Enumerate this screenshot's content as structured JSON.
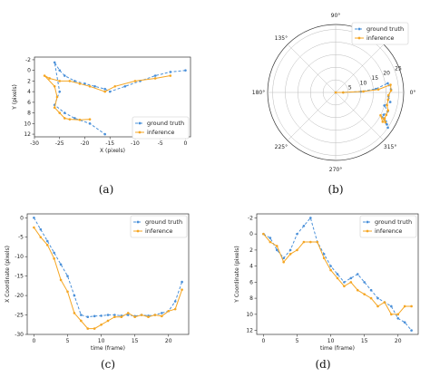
{
  "colors": {
    "ground_truth": "#4a90d9",
    "inference": "#f5a623"
  },
  "panel_labels": [
    "(a)",
    "(b)",
    "(c)",
    "(d)"
  ],
  "chart_data": [
    {
      "type": "line",
      "panel": "(a)",
      "xlabel": "X (pixels)",
      "ylabel": "Y (pixels)",
      "xlim": [
        -30,
        1
      ],
      "ylim": [
        12.5,
        -2.5
      ],
      "xticks": [
        -30,
        -25,
        -20,
        -15,
        -10,
        -5,
        0
      ],
      "yticks": [
        -2,
        0,
        2,
        4,
        6,
        8,
        10,
        12
      ],
      "legend": "bottom-right",
      "series": [
        {
          "name": "ground truth",
          "x": [
            0,
            -3,
            -6,
            -9,
            -12,
            -15,
            -16,
            -18,
            -20,
            -22,
            -24,
            -25,
            -26,
            -25,
            -26,
            -24,
            -22,
            -19,
            -16
          ],
          "y": [
            0,
            0.3,
            1,
            2,
            3,
            4,
            3.5,
            3,
            2.5,
            2,
            1,
            0,
            -1.5,
            4,
            6.5,
            8,
            9,
            10,
            12
          ]
        },
        {
          "name": "inference",
          "x": [
            -3,
            -6,
            -10,
            -14,
            -16,
            -19,
            -21,
            -23,
            -25,
            -27,
            -28,
            -26,
            -25.5,
            -26,
            -25,
            -24,
            -23,
            -21,
            -19
          ],
          "y": [
            1,
            1.5,
            2,
            3,
            4,
            3,
            2.5,
            2,
            2,
            1.5,
            1,
            3,
            5,
            7,
            8,
            9,
            9.2,
            9.3,
            9.2
          ]
        }
      ]
    },
    {
      "type": "line",
      "panel": "(b)",
      "polar": true,
      "angle_ticks": [
        "0°",
        "45°",
        "90°",
        "135°",
        "180°",
        "225°",
        "270°",
        "315°"
      ],
      "radial_ticks": [
        5,
        10,
        15,
        20,
        25
      ],
      "rmax": 27,
      "legend": "top-right",
      "series": [
        {
          "name": "ground truth",
          "theta_deg": [
            180,
            0,
            2,
            5,
            10,
            3,
            356,
            350,
            345,
            340,
            335,
            330,
            328,
            332,
            326
          ],
          "r": [
            0,
            3,
            10,
            16,
            21,
            22,
            21,
            22,
            20,
            22,
            21,
            23,
            24,
            21,
            25
          ]
        },
        {
          "name": "inference",
          "theta_deg": [
            180,
            0,
            2,
            4,
            8,
            2,
            357,
            352,
            346,
            341,
            336,
            332,
            329,
            333,
            328
          ],
          "r": [
            0,
            3,
            11,
            17,
            22,
            22,
            21,
            21,
            21,
            22,
            22,
            22,
            23,
            20,
            22
          ]
        }
      ]
    },
    {
      "type": "line",
      "panel": "(c)",
      "xlabel": "time (frame)",
      "ylabel": "X Coordinate (pixels)",
      "xlim": [
        -1,
        23
      ],
      "ylim": [
        -30,
        1
      ],
      "xticks": [
        0,
        5,
        10,
        15,
        20
      ],
      "yticks": [
        0,
        -5,
        -10,
        -15,
        -20,
        -25,
        -30
      ],
      "legend": "top-right",
      "x": [
        0,
        1,
        2,
        3,
        4,
        5,
        6,
        7,
        8,
        9,
        10,
        11,
        12,
        13,
        14,
        15,
        16,
        17,
        18,
        19,
        20,
        21,
        22
      ],
      "series": [
        {
          "name": "ground truth",
          "values": [
            0,
            -3,
            -6,
            -9,
            -12,
            -15,
            -20,
            -25,
            -25.5,
            -25.3,
            -25.2,
            -25,
            -25,
            -25.2,
            -25,
            -25.3,
            -25,
            -25.2,
            -25,
            -24.5,
            -24,
            -21.5,
            -16.5
          ]
        },
        {
          "name": "inference",
          "values": [
            -2.5,
            -5,
            -7,
            -10.5,
            -16,
            -19,
            -24.5,
            -26.5,
            -28.5,
            -28.5,
            -27.5,
            -26.5,
            -25.5,
            -25.5,
            -24.5,
            -25.5,
            -25,
            -25.5,
            -25,
            -25.3,
            -24,
            -23.5,
            -18.5
          ]
        }
      ]
    },
    {
      "type": "line",
      "panel": "(d)",
      "xlabel": "time (frame)",
      "ylabel": "Y Coordinate (pixels)",
      "xlim": [
        -1,
        23
      ],
      "ylim": [
        12.5,
        -2.5
      ],
      "xticks": [
        0,
        5,
        10,
        15,
        20
      ],
      "yticks": [
        -2,
        0,
        2,
        4,
        6,
        8,
        10,
        12
      ],
      "legend": "top-right",
      "x": [
        0,
        1,
        2,
        3,
        4,
        5,
        6,
        7,
        8,
        9,
        10,
        11,
        12,
        13,
        14,
        15,
        16,
        17,
        18,
        19,
        20,
        21,
        22
      ],
      "series": [
        {
          "name": "ground truth",
          "values": [
            0,
            0.5,
            2,
            3,
            2,
            0,
            -1,
            -2,
            1,
            2.5,
            4,
            5,
            6,
            5.5,
            5,
            6,
            7,
            8,
            8.5,
            9,
            10.5,
            11,
            12
          ]
        },
        {
          "name": "inference",
          "values": [
            0,
            1,
            1.5,
            3.5,
            2.5,
            2,
            1,
            1,
            1,
            3,
            4.5,
            5.5,
            6.5,
            6,
            7,
            7.5,
            8,
            9,
            8.5,
            10,
            10,
            9,
            9
          ]
        }
      ]
    }
  ]
}
